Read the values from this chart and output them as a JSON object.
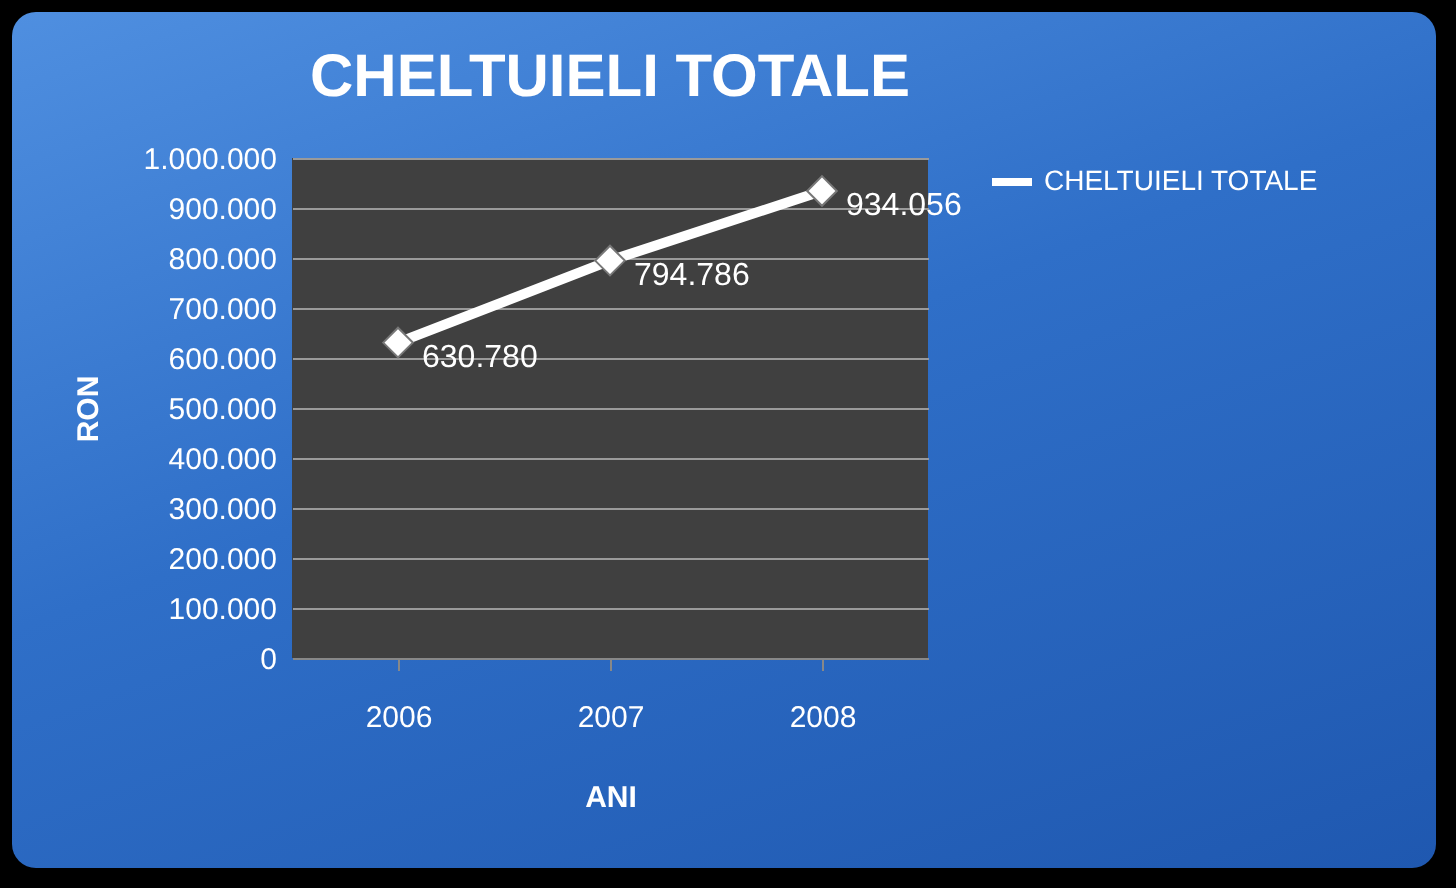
{
  "chart_data": {
    "type": "line",
    "title": "CHELTUIELI TOTALE",
    "xlabel": "ANI",
    "ylabel": "RON",
    "categories": [
      "2006",
      "2007",
      "2008"
    ],
    "series": [
      {
        "name": "CHELTUIELI TOTALE",
        "color": "#ffffff",
        "values": [
          630780,
          794786,
          934056
        ],
        "value_labels": [
          "630.780",
          "794.786",
          "934.056"
        ]
      }
    ],
    "ylim": [
      0,
      1000000
    ],
    "yticks": [
      0,
      {
        "value": 100000,
        "label": "100.000"
      },
      {
        "value": 200000,
        "label": "200.000"
      },
      {
        "value": 300000,
        "label": "300.000"
      },
      {
        "value": 400000,
        "label": "400.000"
      },
      {
        "value": 500000,
        "label": "500.000"
      },
      {
        "value": 600000,
        "label": "600.000"
      },
      {
        "value": 700000,
        "label": "700.000"
      },
      {
        "value": 800000,
        "label": "800.000"
      },
      {
        "value": 900000,
        "label": "900.000"
      },
      {
        "value": 1000000,
        "label": "1.000.000"
      }
    ],
    "grid": "y",
    "legend": "right",
    "marker": "diamond",
    "line_style": "solid"
  }
}
